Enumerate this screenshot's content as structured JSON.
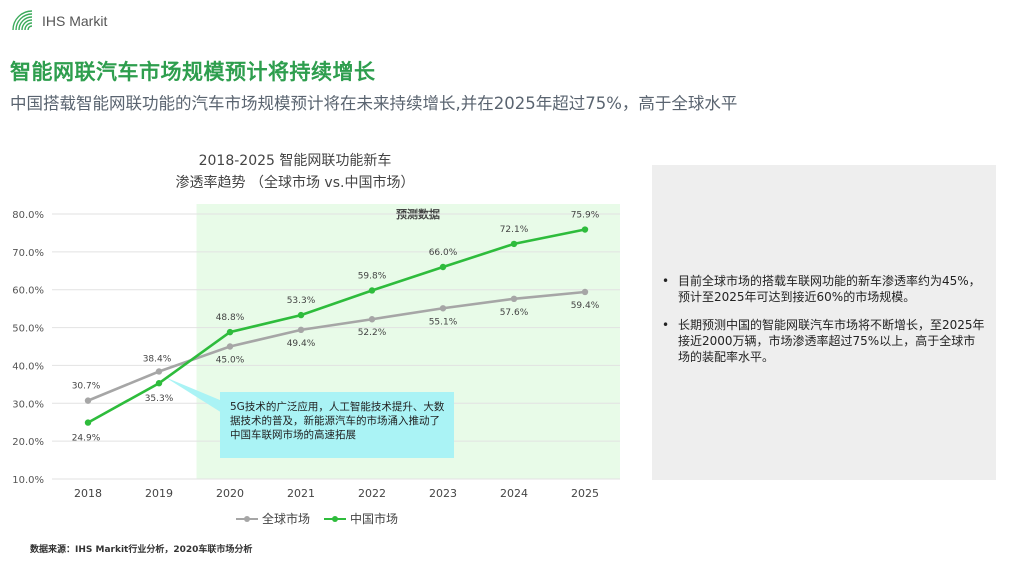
{
  "logo": {
    "text": "IHS Markit"
  },
  "header": {
    "title": "智能网联汽车市场规模预计将持续增长",
    "subtitle": "中国搭载智能网联功能的汽车市场规模预计将在未来持续增长,并在2025年超过75%，高于全球水平"
  },
  "chart_title": {
    "line1": "2018-2025 智能网联功能新车",
    "line2": "渗透率趋势 （全球市场 vs.中国市场）"
  },
  "chart_data": {
    "type": "line",
    "title": "2018-2025 智能网联功能新车 渗透率趋势 （全球市场 vs.中国市场）",
    "categories": [
      "2018",
      "2019",
      "2020",
      "2021",
      "2022",
      "2023",
      "2024",
      "2025"
    ],
    "y_ticks": [
      "10.0%",
      "20.0%",
      "30.0%",
      "40.0%",
      "50.0%",
      "60.0%",
      "70.0%",
      "80.0%"
    ],
    "ylim": [
      10,
      80
    ],
    "grid": true,
    "legend_position": "bottom",
    "forecast_region": {
      "from": "2020",
      "to": "2025",
      "label": "预测数据",
      "color": "#e8fbe8"
    },
    "series": [
      {
        "name": "全球市场",
        "color": "#a6a6a6",
        "values": [
          30.7,
          38.4,
          45.0,
          49.4,
          52.2,
          55.1,
          57.6,
          59.4
        ],
        "labels": [
          "30.7%",
          "38.4%",
          "45.0%",
          "49.4%",
          "52.2%",
          "55.1%",
          "57.6%",
          "59.4%"
        ]
      },
      {
        "name": "中国市场",
        "color": "#2ebc3c",
        "values": [
          24.9,
          35.3,
          48.8,
          53.3,
          59.8,
          66.0,
          72.1,
          75.9
        ],
        "labels": [
          "24.9%",
          "35.3%",
          "48.8%",
          "53.3%",
          "59.8%",
          "66.0%",
          "72.1%",
          "75.9%"
        ]
      }
    ]
  },
  "callout": {
    "text": "5G技术的广泛应用，人工智能技术提升、大数据技术的普及，新能源汽车的市场涌入推动了中国车联网市场的高速拓展"
  },
  "side_panel": {
    "bullets": [
      "目前全球市场的搭载车联网功能的新车渗透率约为45%，预计至2025年可达到接近60%的市场规模。",
      "长期预测中国的智能网联汽车市场将不断增长，至2025年接近2000万辆，市场渗透率超过75%以上，高于全球市场的装配率水平。"
    ]
  },
  "source": "数据来源：IHS Markit行业分析，2020车联市场分析"
}
